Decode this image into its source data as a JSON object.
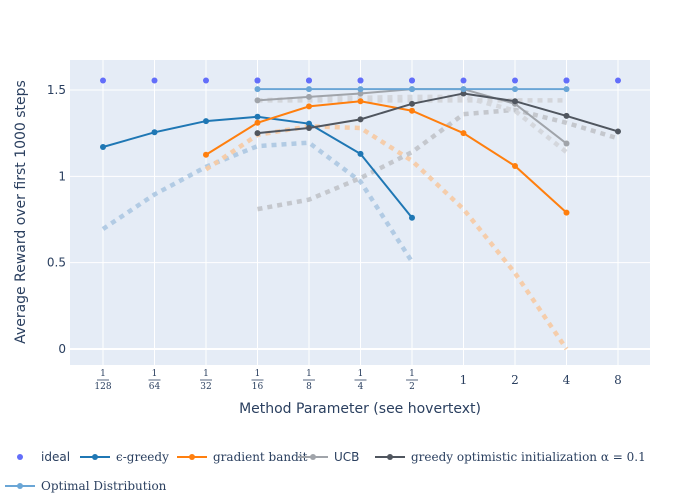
{
  "chart_data": {
    "type": "line",
    "xlabel": "Method Parameter (see hovertext)",
    "ylabel": "Average Reward over first 1000 steps",
    "ylim": [
      -0.08,
      1.68
    ],
    "yticks": [
      0,
      0.5,
      1,
      1.5
    ],
    "ytick_labels": [
      "0",
      "0.5",
      "1",
      "1.5"
    ],
    "x_categories": [
      {
        "num": "1",
        "den": "128",
        "label": "1/128"
      },
      {
        "num": "1",
        "den": "64",
        "label": "1/64"
      },
      {
        "num": "1",
        "den": "32",
        "label": "1/32"
      },
      {
        "num": "1",
        "den": "16",
        "label": "1/16"
      },
      {
        "num": "1",
        "den": "8",
        "label": "1/8"
      },
      {
        "num": "1",
        "den": "4",
        "label": "1/4"
      },
      {
        "num": "1",
        "den": "2",
        "label": "1/2"
      },
      {
        "label": "1"
      },
      {
        "label": "2"
      },
      {
        "label": "4"
      },
      {
        "label": "8"
      }
    ],
    "grid": true,
    "legend_position": "bottom",
    "series": [
      {
        "name": "ideal",
        "kind": "markers",
        "color": "#636efa",
        "x": [
          0,
          1,
          2,
          3,
          3,
          4,
          4,
          5,
          5,
          6,
          6,
          7,
          8,
          9,
          9,
          10
        ],
        "y": [
          1.555,
          1.555,
          1.555,
          1.555,
          1.555,
          1.555,
          1.555,
          1.555,
          1.555,
          1.555,
          1.555,
          1.555,
          1.555,
          1.555,
          1.555,
          1.555
        ]
      },
      {
        "name": "ϵ-greedy",
        "kind": "line",
        "color": "#1f77b4",
        "x": [
          0,
          1,
          2,
          3,
          4,
          5,
          6
        ],
        "y": [
          1.17,
          1.255,
          1.32,
          1.345,
          1.305,
          1.13,
          0.76
        ]
      },
      {
        "name": "gradient bandit",
        "kind": "line",
        "color": "#ff7f0e",
        "x": [
          2,
          3,
          4,
          5,
          6,
          7,
          8,
          9
        ],
        "y": [
          1.125,
          1.31,
          1.405,
          1.435,
          1.38,
          1.25,
          1.06,
          0.79
        ]
      },
      {
        "name": "UCB",
        "kind": "line",
        "color": "#a0a4aa",
        "x": [
          3,
          4,
          5,
          6,
          7,
          8,
          9
        ],
        "y": [
          1.44,
          1.46,
          1.48,
          1.505,
          1.505,
          1.42,
          1.19
        ]
      },
      {
        "name": "greedy optimistic initialization α = 0.1",
        "kind": "line",
        "color": "#50565f",
        "x": [
          3,
          4,
          5,
          6,
          7,
          8,
          9,
          10
        ],
        "y": [
          1.25,
          1.28,
          1.33,
          1.42,
          1.48,
          1.435,
          1.35,
          1.26
        ]
      },
      {
        "name": "Optimal Distribution",
        "kind": "line",
        "color": "#6aa6d6",
        "x": [
          3,
          4,
          5,
          6,
          7,
          8,
          9
        ],
        "y": [
          1.505,
          1.505,
          1.505,
          1.505,
          1.505,
          1.505,
          1.505
        ]
      }
    ],
    "dotted_series": [
      {
        "color": "#afc9e3",
        "x": [
          0,
          1,
          2,
          3,
          4,
          5,
          6
        ],
        "y": [
          0.695,
          0.895,
          1.055,
          1.175,
          1.195,
          0.97,
          0.505
        ]
      },
      {
        "color": "#f6cba6",
        "x": [
          2,
          3,
          4,
          5,
          6,
          7,
          8,
          9
        ],
        "y": [
          1.04,
          1.24,
          1.29,
          1.28,
          1.09,
          0.81,
          0.44,
          0.0
        ]
      },
      {
        "color": "#d2d4d8",
        "x": [
          3,
          4,
          5,
          6,
          7,
          8,
          9
        ],
        "y": [
          1.44,
          1.44,
          1.44,
          1.44,
          1.44,
          1.44,
          1.44
        ]
      },
      {
        "color": "#c2c5ca",
        "x": [
          3,
          4,
          5,
          6,
          7,
          8,
          9,
          10
        ],
        "y": [
          0.81,
          0.865,
          0.99,
          1.14,
          1.36,
          1.385,
          1.31,
          1.22
        ]
      },
      {
        "color": "#d3d6db",
        "x": [
          3,
          4,
          5,
          6,
          7,
          8,
          9
        ],
        "y": [
          1.44,
          1.45,
          1.455,
          1.46,
          1.46,
          1.38,
          1.14
        ]
      }
    ],
    "legend": [
      {
        "label": "ideal"
      },
      {
        "label": "ϵ-greedy"
      },
      {
        "label": "gradient bandit"
      },
      {
        "label": "UCB"
      },
      {
        "label": "greedy optimistic initialization α = 0.1"
      },
      {
        "label": "Optimal Distribution"
      }
    ]
  }
}
